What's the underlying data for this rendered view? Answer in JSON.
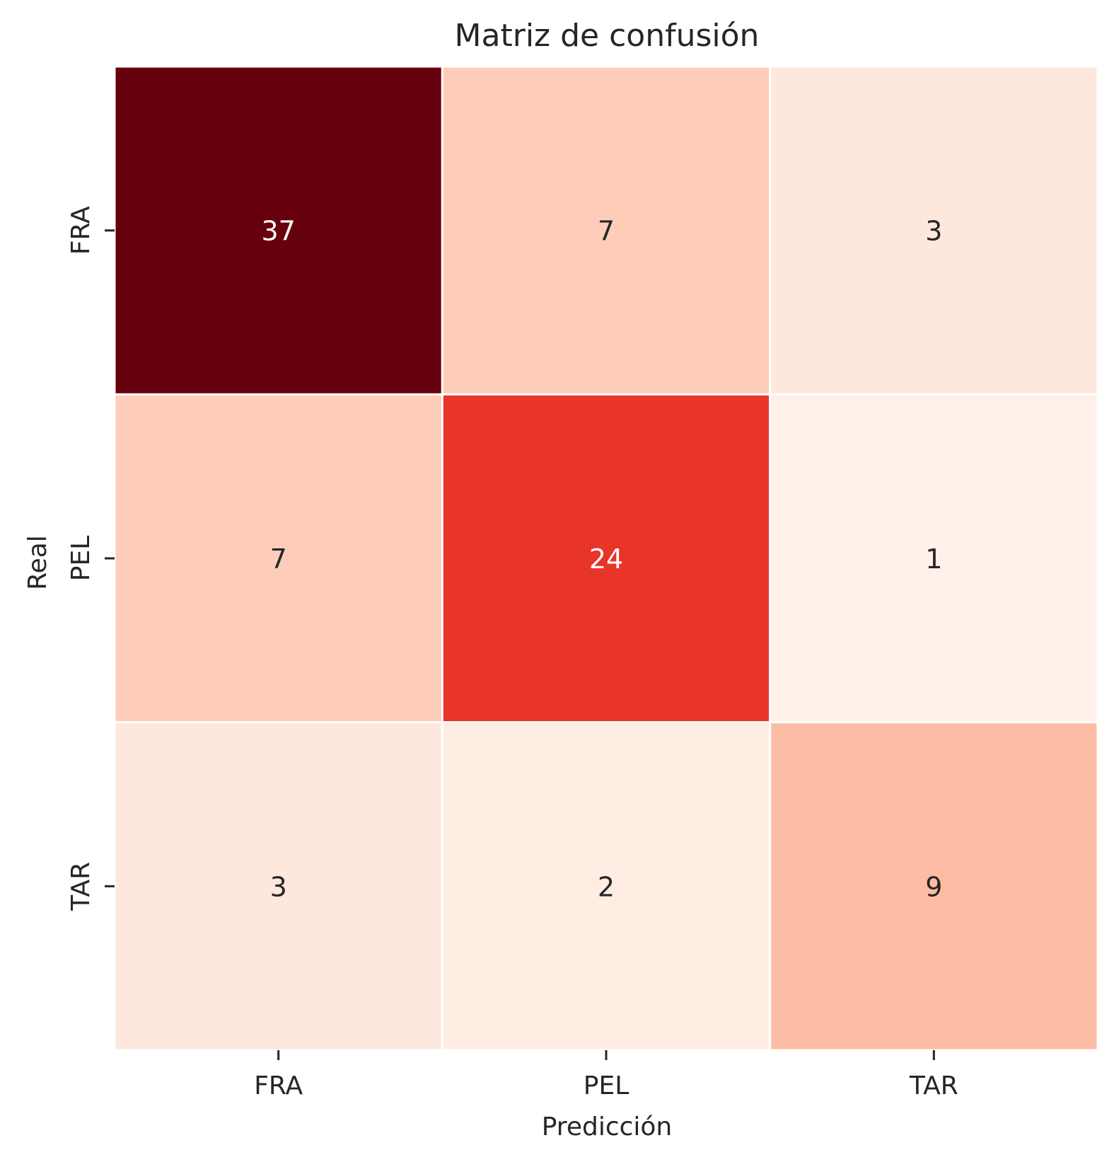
{
  "chart_data": {
    "type": "heatmap",
    "title": "Matriz de confusión",
    "xlabel": "Predicción",
    "ylabel": "Real",
    "x_categories": [
      "FRA",
      "PEL",
      "TAR"
    ],
    "y_categories": [
      "FRA",
      "PEL",
      "TAR"
    ],
    "values": [
      [
        37,
        7,
        3
      ],
      [
        7,
        24,
        1
      ],
      [
        3,
        2,
        9
      ]
    ],
    "colormap": "Reds",
    "value_range": [
      0,
      37
    ],
    "colorbar": false,
    "grid_line_color": "#ffffff",
    "text_color_dark": "#262626",
    "text_color_light": "#ffffff"
  }
}
